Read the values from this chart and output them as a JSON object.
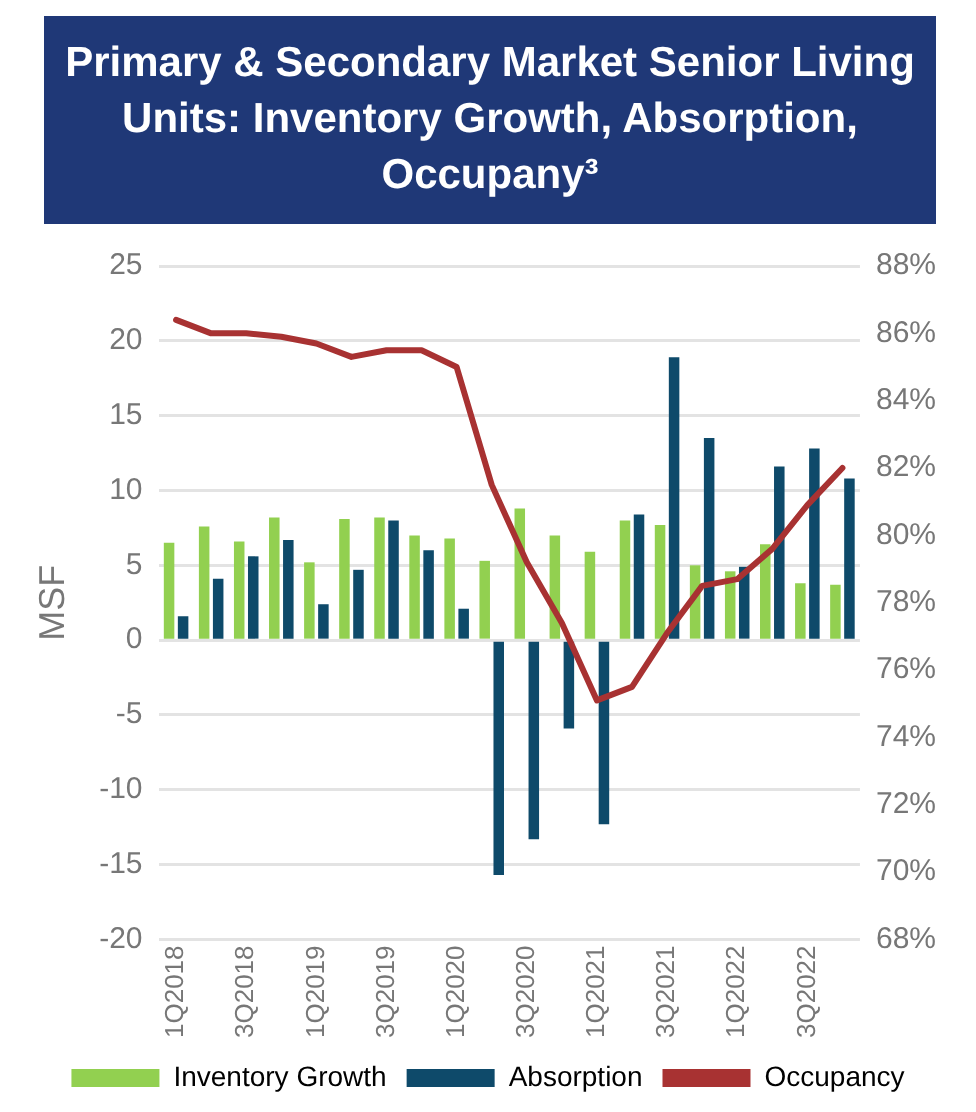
{
  "chart_data": {
    "type": "bar",
    "title": "Primary & Secondary Market Senior Living Units: Inventory Growth, Absorption, Occupany³",
    "categories": [
      "1Q2018",
      null,
      "3Q2018",
      null,
      "1Q2019",
      null,
      "3Q2019",
      null,
      "1Q2020",
      null,
      "3Q2020",
      null,
      "1Q2021",
      null,
      "3Q2021",
      null,
      "1Q2022",
      null,
      "3Q2022",
      null
    ],
    "series": [
      {
        "name": "Inventory Growth",
        "color": "#92d050",
        "values": [
          6.5,
          7.6,
          6.6,
          8.2,
          5.2,
          8.1,
          8.2,
          7.0,
          6.8,
          5.3,
          8.8,
          7.0,
          5.9,
          8.0,
          7.7,
          5.0,
          4.6,
          6.4,
          3.8,
          3.7
        ]
      },
      {
        "name": "Absorption",
        "color": "#0e4a6a",
        "values": [
          1.6,
          4.1,
          5.6,
          6.7,
          2.4,
          4.7,
          8.0,
          6.0,
          2.1,
          -15.7,
          -13.3,
          -5.9,
          -12.3,
          8.4,
          18.9,
          13.5,
          4.9,
          11.6,
          12.8,
          10.8
        ]
      },
      {
        "name": "Occupancy",
        "type": "line",
        "axis": "y2",
        "color": "#a83232",
        "values": [
          86.4,
          86.0,
          86.0,
          85.9,
          85.7,
          85.3,
          85.5,
          85.5,
          85.0,
          81.5,
          79.2,
          77.4,
          75.1,
          75.5,
          77.1,
          78.5,
          78.7,
          79.6,
          80.9,
          82.0
        ]
      }
    ],
    "ylabel": "MSF",
    "ylim": [
      -20,
      25
    ],
    "yticks": [
      -20,
      -15,
      -10,
      -5,
      0,
      5,
      10,
      15,
      20,
      25
    ],
    "y2lim": [
      68,
      88
    ],
    "y2ticks": [
      {
        "value": 68,
        "label": "68%"
      },
      {
        "value": 70,
        "label": "70%"
      },
      {
        "value": 72,
        "label": "72%"
      },
      {
        "value": 74,
        "label": "74%"
      },
      {
        "value": 76,
        "label": "76%"
      },
      {
        "value": 78,
        "label": "78%"
      },
      {
        "value": 80,
        "label": "80%"
      },
      {
        "value": 82,
        "label": "82%"
      },
      {
        "value": 84,
        "label": "84%"
      },
      {
        "value": 86,
        "label": "86%"
      },
      {
        "value": 88,
        "label": "88%"
      }
    ],
    "grid": "y",
    "legend": "bottom",
    "marker": "none"
  }
}
